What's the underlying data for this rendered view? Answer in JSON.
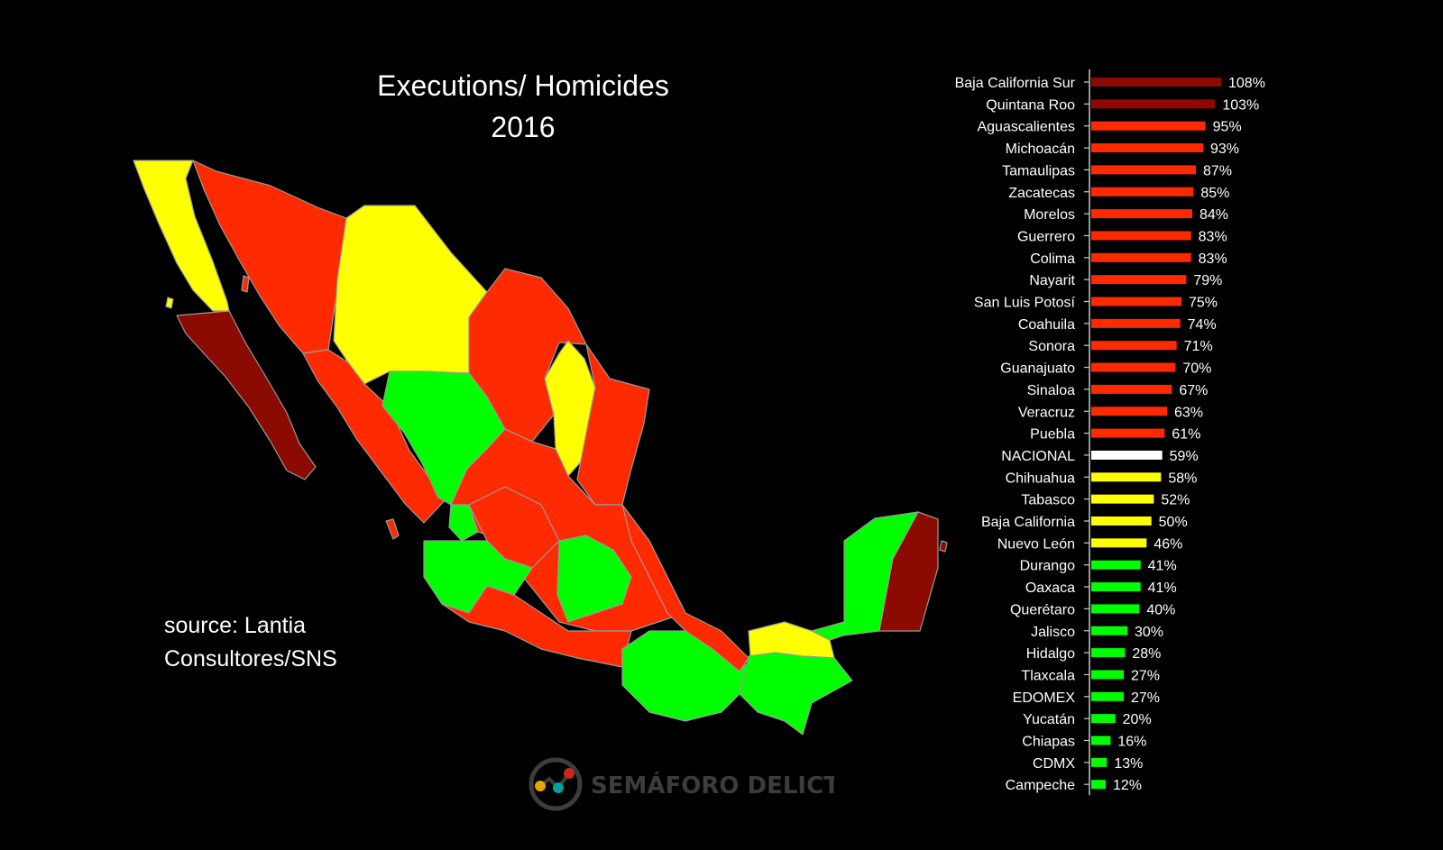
{
  "title": {
    "line1": "Executions/ Homicides",
    "line2": "2016"
  },
  "source": {
    "line1": "source: Lantia",
    "line2": "Consultores/SNS"
  },
  "logo": {
    "text": "SEMÁFORO DELICTIVO",
    "icon": "traffic-light-chart-icon"
  },
  "colors": {
    "background": "#000000",
    "very_high": "#8b0a02",
    "high": "#ff2a00",
    "medium": "#ffff00",
    "low": "#00ff00",
    "national": "#ffffff",
    "map_border": "#9a9a9a"
  },
  "chart_data": {
    "type": "bar",
    "orientation": "horizontal",
    "title": "Executions/ Homicides 2016",
    "value_suffix": "%",
    "categories": [
      "Baja California Sur",
      "Quintana Roo",
      "Aguascalientes",
      "Michoacán",
      "Tamaulipas",
      "Zacatecas",
      "Morelos",
      "Guerrero",
      "Colima",
      "Nayarit",
      "San Luis Potosí",
      "Coahuila",
      "Sonora",
      "Guanajuato",
      "Sinaloa",
      "Veracruz",
      "Puebla",
      "NACIONAL",
      "Chihuahua",
      "Tabasco",
      "Baja California",
      "Nuevo León",
      "Durango",
      "Oaxaca",
      "Querétaro",
      "Jalisco",
      "Hidalgo",
      "Tlaxcala",
      "EDOMEX",
      "Yucatán",
      "Chiapas",
      "CDMX",
      "Campeche"
    ],
    "values": [
      108,
      103,
      95,
      93,
      87,
      85,
      84,
      83,
      83,
      79,
      75,
      74,
      71,
      70,
      67,
      63,
      61,
      59,
      58,
      52,
      50,
      46,
      41,
      41,
      40,
      30,
      28,
      27,
      27,
      20,
      16,
      13,
      12
    ],
    "bar_colors": [
      "#8b0a02",
      "#8b0a02",
      "#ff2a00",
      "#ff2a00",
      "#ff2a00",
      "#ff2a00",
      "#ff2a00",
      "#ff2a00",
      "#ff2a00",
      "#ff2a00",
      "#ff2a00",
      "#ff2a00",
      "#ff2a00",
      "#ff2a00",
      "#ff2a00",
      "#ff2a00",
      "#ff2a00",
      "#ffffff",
      "#ffff00",
      "#ffff00",
      "#ffff00",
      "#ffff00",
      "#00ff00",
      "#00ff00",
      "#00ff00",
      "#00ff00",
      "#00ff00",
      "#00ff00",
      "#00ff00",
      "#00ff00",
      "#00ff00",
      "#00ff00",
      "#00ff00"
    ],
    "xlim": [
      0,
      108
    ],
    "grid": false,
    "legend": "none"
  }
}
